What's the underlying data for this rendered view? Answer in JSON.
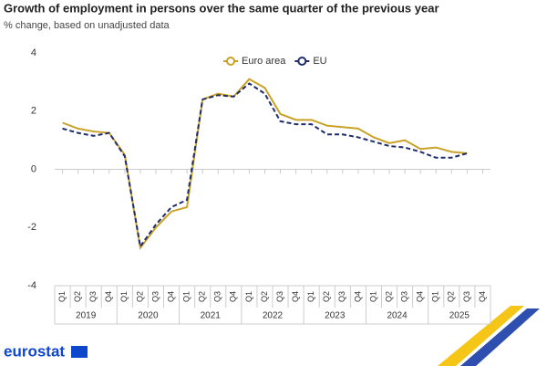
{
  "chart_data": {
    "type": "line",
    "title": "Growth of employment in persons over the same quarter of the previous year",
    "subtitle": "% change, based on unadjusted data",
    "categories": [
      "Q1",
      "Q2",
      "Q3",
      "Q4",
      "Q1",
      "Q2",
      "Q3",
      "Q4",
      "Q1",
      "Q2",
      "Q3",
      "Q4",
      "Q1",
      "Q2",
      "Q3",
      "Q4",
      "Q1",
      "Q2",
      "Q3",
      "Q4",
      "Q1",
      "Q2",
      "Q3",
      "Q4",
      "Q1",
      "Q2",
      "Q3",
      "Q4"
    ],
    "years": [
      "2019",
      "2020",
      "2021",
      "2022",
      "2023",
      "2024",
      "2025"
    ],
    "series": [
      {
        "name": "Euro area",
        "color": "#c9a227",
        "line_style": "solid",
        "values": [
          1.6,
          1.4,
          1.3,
          1.25,
          0.5,
          -2.7,
          -2.0,
          -1.45,
          -1.3,
          2.4,
          2.6,
          2.5,
          3.1,
          2.8,
          1.9,
          1.7,
          1.7,
          1.5,
          1.45,
          1.4,
          1.1,
          0.9,
          1.0,
          0.7,
          0.75,
          0.6,
          0.55,
          null
        ]
      },
      {
        "name": "EU",
        "color": "#1f2d6b",
        "line_style": "dashed",
        "values": [
          1.4,
          1.25,
          1.15,
          1.25,
          0.45,
          -2.65,
          -1.9,
          -1.3,
          -1.05,
          2.4,
          2.55,
          2.5,
          2.95,
          2.6,
          1.65,
          1.55,
          1.55,
          1.2,
          1.2,
          1.1,
          0.95,
          0.8,
          0.75,
          0.6,
          0.4,
          0.4,
          0.55,
          null
        ]
      }
    ],
    "ylim": [
      -4,
      4
    ],
    "yticks": [
      -4,
      -2,
      0,
      2,
      4
    ],
    "grid": false,
    "legend": "top"
  },
  "footer": {
    "logo": "eurostat"
  }
}
